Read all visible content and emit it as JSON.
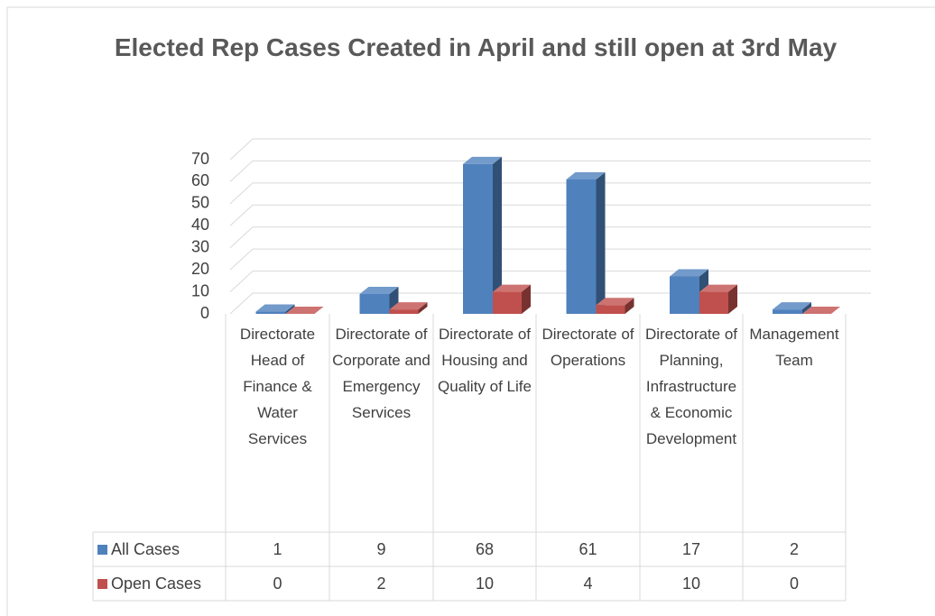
{
  "chart_data": {
    "type": "bar3d",
    "title": "Elected Rep Cases Created in April and still open at 3rd May",
    "categories": [
      "Directorate Head of Finance & Water Services",
      "Directorate of Corporate and Emergency Services",
      "Directorate of Housing and Quality of Life",
      "Directorate of Operations",
      "Directorate of Planning, Infrastructure & Economic Development",
      "Management Team"
    ],
    "series": [
      {
        "name": "All Cases",
        "color": "#4f81bd",
        "values": [
          1,
          9,
          68,
          61,
          17,
          2
        ]
      },
      {
        "name": "Open Cases",
        "color": "#c0504d",
        "values": [
          0,
          2,
          10,
          4,
          10,
          0
        ]
      }
    ],
    "ylim": [
      0,
      70
    ],
    "yticks": [
      0,
      10,
      20,
      30,
      40,
      50,
      60,
      70
    ],
    "grid": true,
    "data_table": true
  }
}
